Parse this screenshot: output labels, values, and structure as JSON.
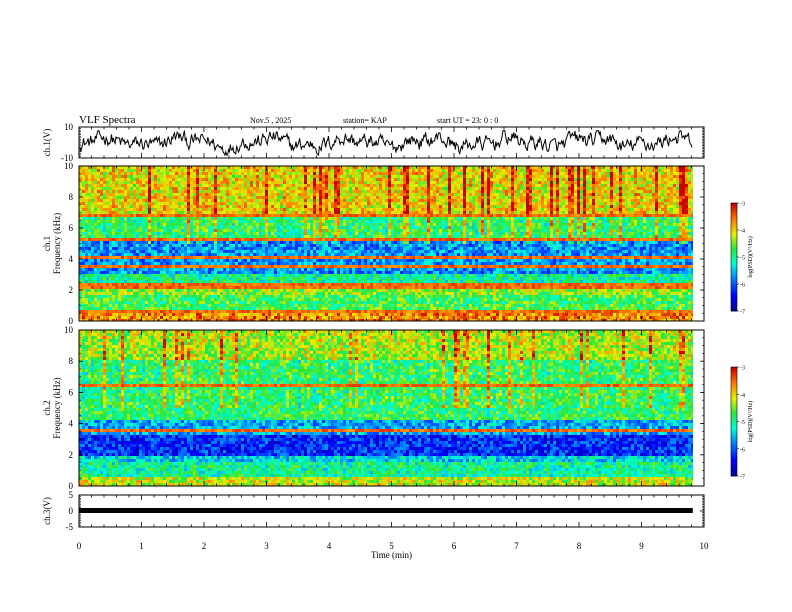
{
  "header": {
    "title": "VLF Spectra",
    "date": "Nov.5  , 2025",
    "station": "station= KAP",
    "start_ut": "start  UT  =   23: 0  : 0"
  },
  "colors": {
    "waveform": "#000000",
    "axis": "#000000",
    "background": "#ffffff"
  },
  "chart_data": [
    {
      "type": "line",
      "id": "ch1-waveform",
      "ylabel": "ch.1(V)",
      "ylim": [
        -10,
        10
      ],
      "yticks": [
        "10",
        "-10"
      ],
      "xlim": [
        0,
        10
      ],
      "note": "noisy waveform oscillating roughly between -9 and 8 V over 0-9.8 min"
    },
    {
      "type": "heatmap",
      "id": "ch1-spectrogram",
      "ylabel": "ch.1\nFrequency  (kHz)",
      "ylim": [
        0,
        10
      ],
      "yticks": [
        "0",
        "2",
        "4",
        "6",
        "8",
        "10"
      ],
      "xlim": [
        0,
        10
      ],
      "data_end_min": 9.82,
      "bands_khz": [
        {
          "from": 0.0,
          "to": 0.6,
          "level": -3.6
        },
        {
          "from": 0.6,
          "to": 1.6,
          "level": -4.7
        },
        {
          "from": 1.6,
          "to": 2.4,
          "level": -4.4
        },
        {
          "from": 2.4,
          "to": 3.0,
          "level": -5.0
        },
        {
          "from": 3.0,
          "to": 5.3,
          "level": -5.7
        },
        {
          "from": 5.3,
          "to": 6.8,
          "level": -4.8
        },
        {
          "from": 6.8,
          "to": 10.0,
          "level": -4.0
        }
      ],
      "lines_khz": [
        0.3,
        0.6,
        2.1,
        2.3,
        3.5,
        4.1,
        5.3,
        6.5,
        6.8
      ],
      "colorbar": {
        "label": "log(PSD)(V²/Hz)",
        "range": [
          -7,
          -3
        ],
        "ticks": [
          "-3",
          "-4",
          "-5",
          "-6",
          "-7"
        ]
      }
    },
    {
      "type": "heatmap",
      "id": "ch2-spectrogram",
      "ylabel": "ch.2\nFrequency  (kHz)",
      "ylim": [
        0,
        10
      ],
      "yticks": [
        "0",
        "2",
        "4",
        "6",
        "8",
        "10"
      ],
      "xlim": [
        0,
        10
      ],
      "data_end_min": 9.82,
      "bands_khz": [
        {
          "from": 0.0,
          "to": 0.5,
          "level": -4.2
        },
        {
          "from": 0.5,
          "to": 1.6,
          "level": -5.0
        },
        {
          "from": 1.6,
          "to": 2.0,
          "level": -5.4
        },
        {
          "from": 2.0,
          "to": 3.3,
          "level": -6.2
        },
        {
          "from": 3.3,
          "to": 4.3,
          "level": -5.6
        },
        {
          "from": 4.3,
          "to": 8.0,
          "level": -4.8
        },
        {
          "from": 8.0,
          "to": 10.0,
          "level": -4.3
        }
      ],
      "lines_khz": [
        0.6,
        1.9,
        3.5,
        4.8,
        6.4,
        7.9
      ],
      "colorbar": {
        "label": "log(PSD)(V²/Hz)",
        "range": [
          -7,
          -3
        ],
        "ticks": [
          "-3",
          "-4",
          "-5",
          "-6",
          "-7"
        ]
      }
    },
    {
      "type": "line",
      "id": "ch3-waveform",
      "ylabel": "ch.3(V)",
      "ylim": [
        -5,
        5
      ],
      "yticks": [
        "5",
        "0",
        "-5"
      ],
      "xlim": [
        0,
        10
      ],
      "xlabel": "Time  (min)",
      "xticks": [
        "0",
        "1",
        "2",
        "3",
        "4",
        "5",
        "6",
        "7",
        "8",
        "9",
        "10"
      ],
      "note": "dense pulse train of about +/-0.7 V around 0 V from 0 to 9.8 min"
    }
  ]
}
